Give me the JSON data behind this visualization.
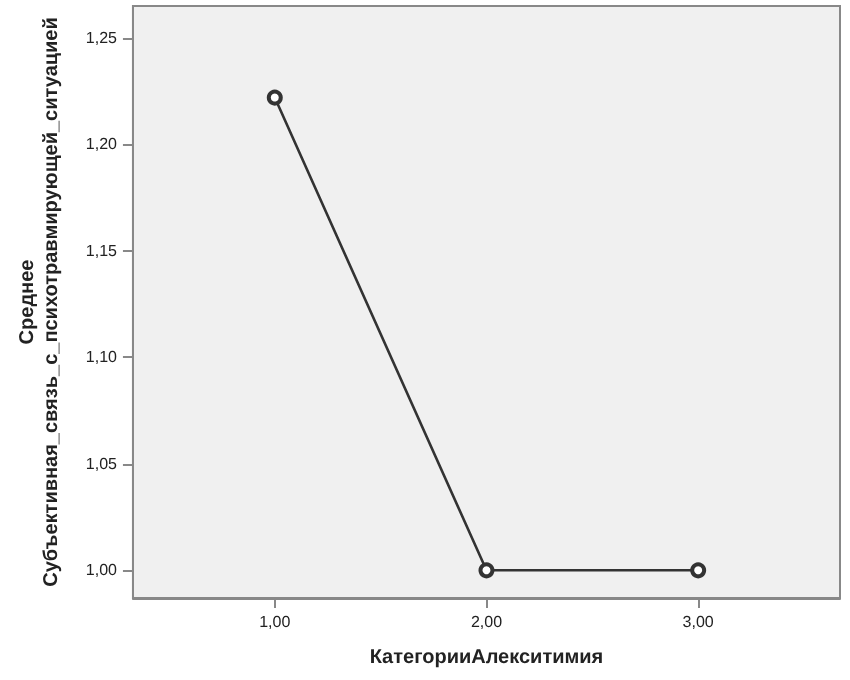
{
  "chart_data": {
    "type": "line",
    "xlabel": "КатегорииАлекситимия",
    "ylabel": "Среднее\nСубъективная_связь_с_психотравмирующей_ситуацией",
    "x": [
      1,
      2,
      3
    ],
    "series": [
      {
        "color": "#333333",
        "values": [
          1.222,
          1,
          1
        ]
      }
    ],
    "xlim": [
      0.33,
      3.67
    ],
    "ylim": [
      0.987,
      1.265
    ],
    "xticks": [
      {
        "value": 1,
        "label": "1,00"
      },
      {
        "value": 2,
        "label": "2,00"
      },
      {
        "value": 3,
        "label": "3,00"
      }
    ],
    "yticks": [
      {
        "value": 1,
        "label": "1,00"
      },
      {
        "value": 1.05,
        "label": "1,05"
      },
      {
        "value": 1.1,
        "label": "1,10"
      },
      {
        "value": 1.15,
        "label": "1,15"
      },
      {
        "value": 1.2,
        "label": "1,20"
      },
      {
        "value": 1.25,
        "label": "1,25"
      }
    ],
    "marker": "circle",
    "line_style": "solid"
  }
}
